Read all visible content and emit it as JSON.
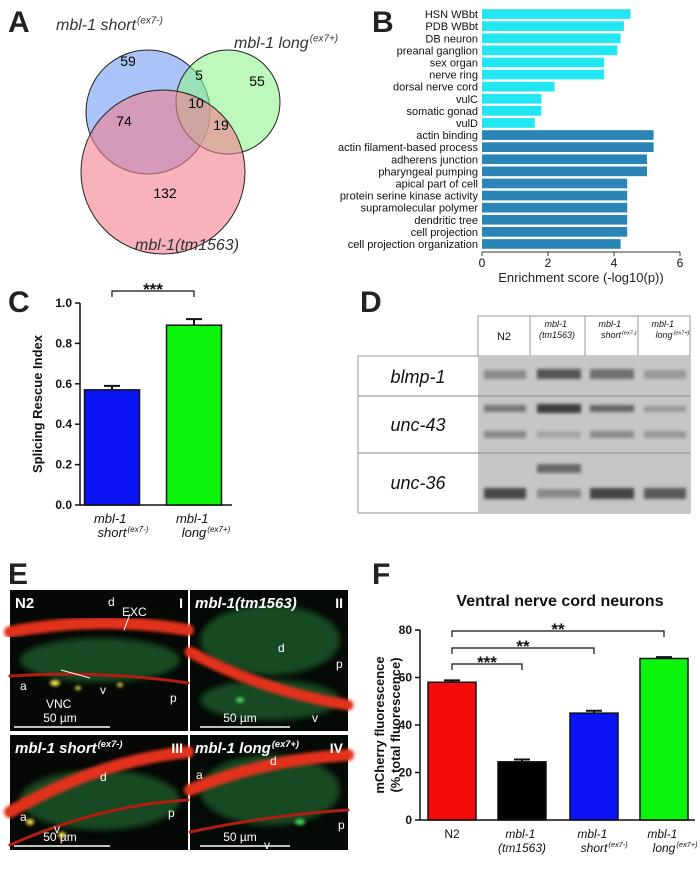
{
  "panel_labels": [
    "A",
    "B",
    "C",
    "D",
    "E",
    "F"
  ],
  "venn": {
    "sets": [
      {
        "name": "mbl-1 short",
        "sup": "(ex7-)"
      },
      {
        "name": "mbl-1 long",
        "sup": "(ex7+)"
      },
      {
        "name": "mbl-1(tm1563)"
      }
    ],
    "regions": {
      "short_only": 59,
      "short_long": 5,
      "long_only": 55,
      "short_tm": 74,
      "all": 10,
      "long_tm": 19,
      "tm_only": 132
    }
  },
  "chart_data": [
    {
      "type": "barh",
      "categories": [
        "HSN WBbt",
        "PDB WBbt",
        "DB neuron",
        "preanal ganglion",
        "sex organ",
        "nerve ring",
        "dorsal nerve cord",
        "vulC",
        "somatic gonad",
        "vulD",
        "actin binding",
        "actin filament-based process",
        "adherens junction",
        "pharyngeal pumping",
        "apical part of cell",
        "protein serine kinase activity",
        "supramolecular polymer",
        "dendritic tree",
        "cell projection",
        "cell projection organization"
      ],
      "values": [
        4.5,
        4.3,
        4.2,
        4.1,
        3.7,
        3.7,
        2.2,
        1.8,
        1.8,
        1.6,
        5.2,
        5.2,
        5.0,
        5.0,
        4.4,
        4.4,
        4.4,
        4.4,
        4.4,
        4.2
      ],
      "colors": [
        "#22e6f2",
        "#22e6f2",
        "#22e6f2",
        "#22e6f2",
        "#22e6f2",
        "#22e6f2",
        "#22e6f2",
        "#22e6f2",
        "#22e6f2",
        "#22e6f2",
        "#2a84b6",
        "#2a84b6",
        "#2a84b6",
        "#2a84b6",
        "#2a84b6",
        "#2a84b6",
        "#2a84b6",
        "#2a84b6",
        "#2a84b6",
        "#2a84b6"
      ],
      "xlabel": "Enrichment score (-log10(p))",
      "xlim": [
        0,
        6
      ],
      "xticks": [
        0,
        2,
        4,
        6
      ]
    },
    {
      "type": "bar",
      "categories": [
        "mbl-1 short",
        "mbl-1 long"
      ],
      "category_superscripts": [
        "(ex7-)",
        "(ex7+)"
      ],
      "values": [
        0.57,
        0.89
      ],
      "errors": [
        0.02,
        0.03
      ],
      "colors": [
        "#0a14f5",
        "#0cf50c"
      ],
      "ylabel": [
        "Splicing Rescue Index"
      ],
      "ylim": [
        0,
        1
      ],
      "yticks": [
        {
          "value": 0,
          "label": "0.0"
        },
        0.2,
        0.4,
        0.6,
        0.8,
        {
          "value": 1,
          "label": "1.0"
        }
      ],
      "annotations": [
        "***"
      ]
    },
    {
      "type": "bar",
      "title": "Ventral nerve cord neurons",
      "categories": [
        "N2",
        "mbl-1 (tm1563)",
        "mbl-1 short",
        "mbl-1 long"
      ],
      "category_superscripts": [
        null,
        null,
        "(ex7-)",
        "(ex7+)"
      ],
      "values": [
        58,
        24.5,
        45,
        68
      ],
      "errors": [
        0.8,
        1,
        1,
        0.6
      ],
      "colors": [
        "#f50a0a",
        "#000000",
        "#0a14f5",
        "#0cf50c"
      ],
      "ylabel": [
        "mCherry fluorescence",
        "(% total fluorescence)"
      ],
      "ylim": [
        0,
        80
      ],
      "yticks": [
        0,
        20,
        40,
        60,
        80
      ],
      "annotations": [
        "***",
        "**",
        "**"
      ]
    }
  ],
  "gel": {
    "columns": [
      "N2",
      "mbl-1 (tm1563)",
      "mbl-1 short",
      "mbl-1 long"
    ],
    "column_superscripts": [
      null,
      null,
      "(ex7-)",
      "(ex7+)"
    ],
    "rows": [
      "blmp-1",
      "unc-43",
      "unc-36"
    ]
  },
  "micrographs": [
    {
      "title": "N2",
      "numeral": "I",
      "marks": [
        "d",
        "EXC",
        "a",
        "VNC",
        "v",
        "p"
      ],
      "scale": "50 µm"
    },
    {
      "title": "mbl-1(tm1563)",
      "numeral": "II",
      "marks": [
        "d",
        "p",
        "v"
      ],
      "scale": "50 µm"
    },
    {
      "title": "mbl-1 short",
      "title_sup": "(ex7-)",
      "numeral": "III",
      "marks": [
        "d",
        "a",
        "p",
        "v"
      ],
      "scale": "50 µm"
    },
    {
      "title": "mbl-1 long",
      "title_sup": "(ex7+)",
      "numeral": "IV",
      "marks": [
        "a",
        "d",
        "p",
        "v"
      ],
      "scale": "50 µm"
    }
  ]
}
